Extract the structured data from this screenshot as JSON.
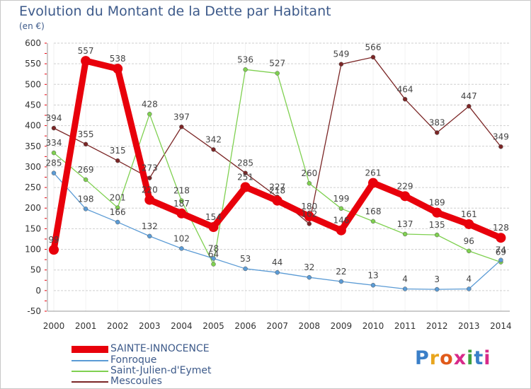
{
  "header": {
    "title": "Evolution du Montant de la Dette par Habitant",
    "subtitle": "(en €)"
  },
  "logo": {
    "text": "Proxiti",
    "colors": [
      "#3a7fc8",
      "#e8a51e",
      "#e05a1a",
      "#d82a8a",
      "#3fa03f",
      "#3a7fc8",
      "#d82a8a"
    ]
  },
  "chart_data": {
    "type": "line",
    "title": "Evolution du Montant de la Dette par Habitant",
    "subtitle": "(en €)",
    "xlabel": "",
    "ylabel": "",
    "x": [
      "2000",
      "2001",
      "2002",
      "2003",
      "2004",
      "2005",
      "2006",
      "2007",
      "2008",
      "2009",
      "2010",
      "2011",
      "2012",
      "2013",
      "2014"
    ],
    "ylim": [
      -50,
      600
    ],
    "yticks": [
      -50,
      0,
      50,
      100,
      150,
      200,
      250,
      300,
      350,
      400,
      450,
      500,
      550,
      600
    ],
    "grid": "horizontal",
    "legend": "bottom-left",
    "series": [
      {
        "name": "SAINTE-INNOCENCE",
        "color": "#e8000b",
        "values": [
          99,
          557,
          538,
          220,
          187,
          154,
          251,
          218,
          180,
          146,
          261,
          229,
          189,
          161,
          128
        ]
      },
      {
        "name": "Fonroque",
        "color": "#5b9bd5",
        "values": [
          285,
          198,
          166,
          132,
          102,
          78,
          53,
          44,
          32,
          22,
          13,
          4,
          3,
          4,
          74
        ]
      },
      {
        "name": "Saint-Julien-d'Eymet",
        "color": "#7fd050",
        "values": [
          334,
          269,
          201,
          428,
          218,
          64,
          536,
          527,
          260,
          199,
          168,
          137,
          135,
          96,
          69
        ]
      },
      {
        "name": "Mescoules",
        "color": "#7b2626",
        "values": [
          394,
          355,
          315,
          273,
          397,
          342,
          285,
          227,
          162,
          549,
          566,
          464,
          383,
          447,
          349
        ]
      }
    ]
  }
}
